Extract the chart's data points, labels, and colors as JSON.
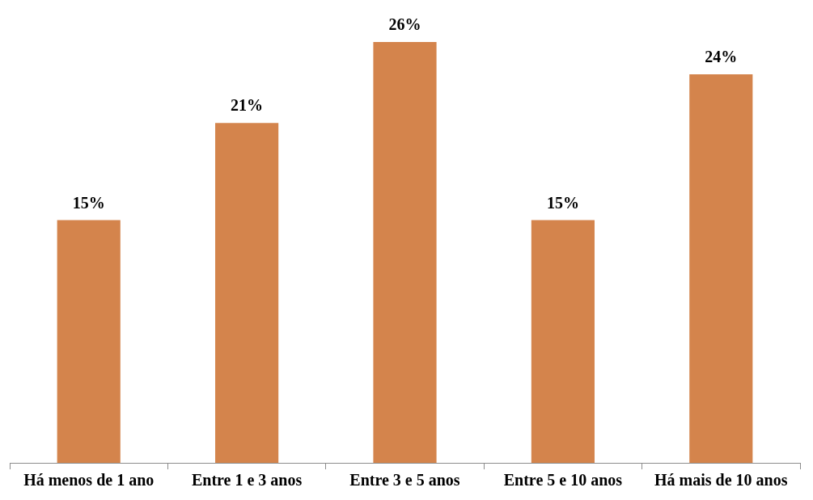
{
  "chart_data": {
    "type": "bar",
    "categories": [
      "Há menos de 1 ano",
      "Entre 1 e 3 anos",
      "Entre 3 e 5 anos",
      "Entre 5 e 10 anos",
      "Há mais de 10 anos"
    ],
    "values": [
      15,
      21,
      26,
      15,
      24
    ],
    "value_labels": [
      "15%",
      "21%",
      "26%",
      "15%",
      "24%"
    ],
    "color": "#d4844c",
    "grid": false,
    "legend": false
  }
}
